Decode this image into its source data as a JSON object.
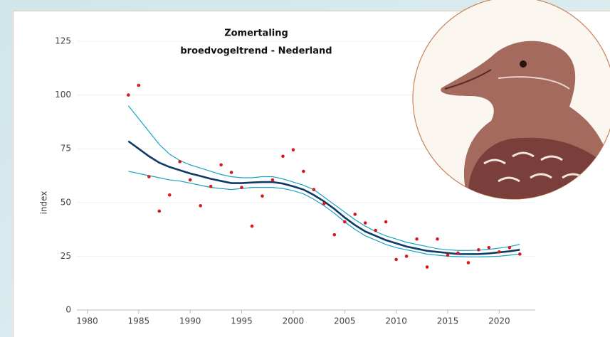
{
  "chart_data": {
    "type": "line",
    "title": "Zomertaling",
    "subtitle": "broedvogeltrend - Nederland",
    "ylabel": "index",
    "x": [
      1984,
      1985,
      1986,
      1987,
      1988,
      1989,
      1990,
      1991,
      1992,
      1993,
      1994,
      1995,
      1996,
      1997,
      1998,
      1999,
      2000,
      2001,
      2002,
      2003,
      2004,
      2005,
      2006,
      2007,
      2008,
      2009,
      2010,
      2011,
      2012,
      2013,
      2014,
      2015,
      2016,
      2017,
      2018,
      2019,
      2020,
      2021,
      2022
    ],
    "series": [
      {
        "type": "line",
        "color": "#1aa3c0",
        "values": [
          95,
          89,
          83,
          77,
          72.5,
          69.5,
          67.5,
          66,
          64.5,
          63,
          62,
          61.5,
          61.5,
          62,
          62,
          61,
          59.5,
          58,
          56,
          52.5,
          49,
          45.5,
          42,
          39,
          36.5,
          34.5,
          33,
          31.5,
          30.5,
          29.5,
          28.5,
          28,
          27.7,
          27.7,
          27.8,
          28.2,
          28.8,
          29.5,
          30.5
        ]
      },
      {
        "type": "line",
        "color": "#1aa3c0",
        "values": [
          64.5,
          63.5,
          62.5,
          61.5,
          60.5,
          60,
          59,
          58,
          57,
          56.5,
          56,
          56.5,
          57,
          57,
          57,
          56.5,
          55.5,
          54,
          51.5,
          48.5,
          45,
          41,
          37.5,
          34.5,
          32.5,
          30.5,
          29,
          28,
          27,
          26,
          25.5,
          25,
          24.8,
          24.7,
          24.7,
          24.8,
          25,
          25.5,
          26
        ]
      },
      {
        "type": "line",
        "color": "#0d3a66",
        "values": [
          78.5,
          75,
          71.5,
          68.5,
          66.5,
          65,
          63.5,
          62.3,
          61,
          60,
          59,
          59,
          59.3,
          59.5,
          59.5,
          58.8,
          57.5,
          56,
          53.5,
          50.5,
          47,
          43,
          39.5,
          36.5,
          34.5,
          32.5,
          31,
          29.5,
          28.5,
          27.5,
          27,
          26.5,
          26,
          26,
          26,
          26.3,
          26.8,
          27.3,
          28
        ]
      },
      {
        "type": "scatter",
        "color": "#d7191c",
        "values": [
          100,
          104.5,
          62,
          46,
          53.5,
          69,
          60.5,
          48.5,
          57.5,
          67.5,
          64,
          57,
          39,
          53,
          60.5,
          71.5,
          74.5,
          64.5,
          56,
          49.5,
          35,
          41,
          44.5,
          40.5,
          37,
          41,
          23.5,
          25,
          33,
          20,
          33,
          25.5,
          26.5,
          22,
          28,
          29,
          27,
          29,
          26
        ]
      }
    ],
    "xlim": [
      1979,
      2023.5
    ],
    "xticks": [
      1980,
      1985,
      1990,
      1995,
      2000,
      2005,
      2010,
      2015,
      2020
    ],
    "ylim": [
      0,
      125
    ],
    "yticks": [
      0,
      25,
      50,
      75,
      100,
      125
    ],
    "grid": true
  }
}
